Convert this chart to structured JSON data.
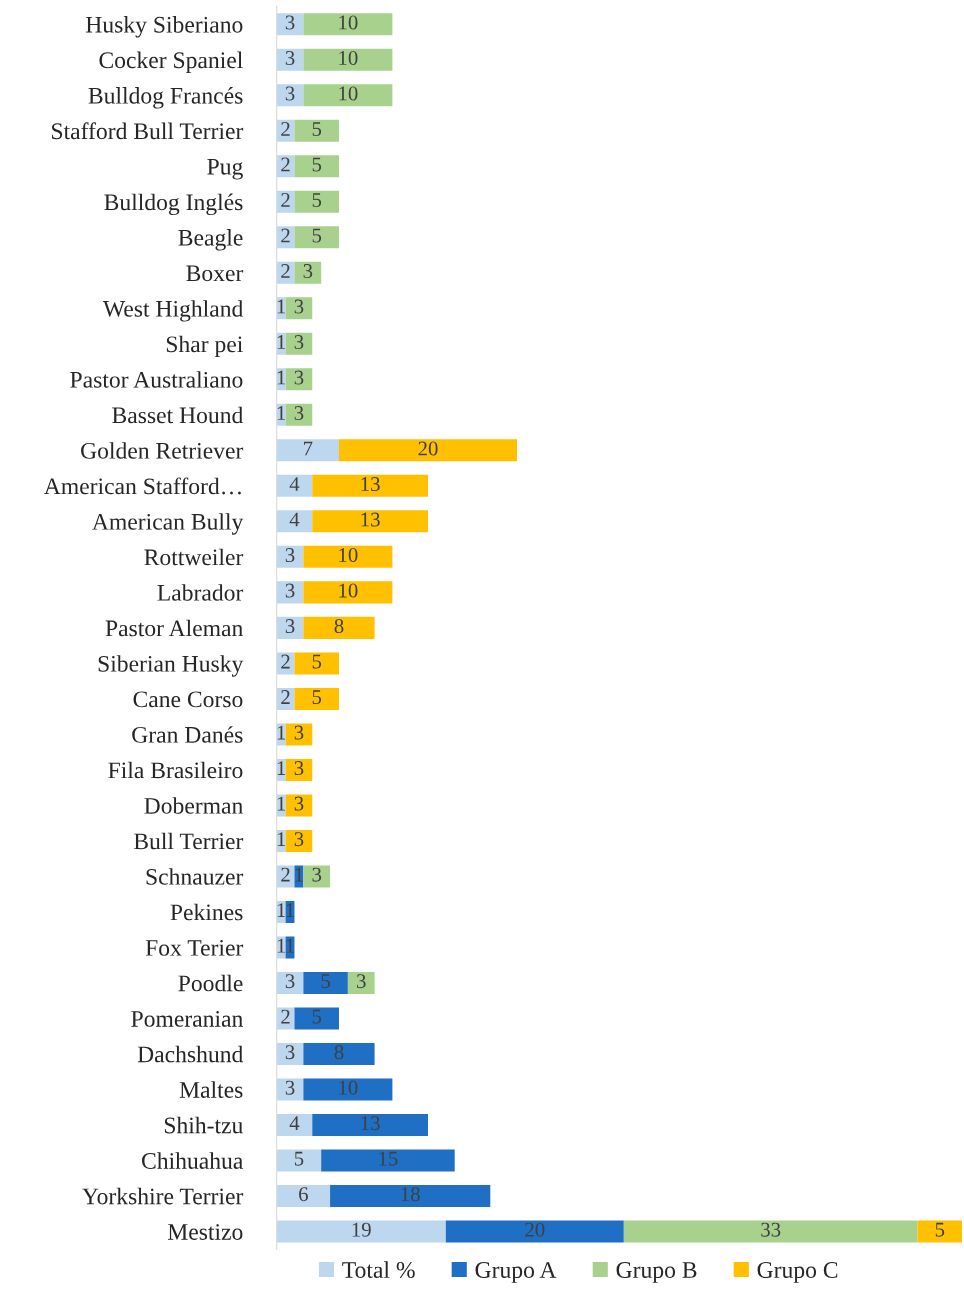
{
  "chart_data": {
    "type": "bar",
    "orientation": "horizontal",
    "stacked": true,
    "data_labels": true,
    "legend": "bottom",
    "grid": false,
    "categories": [
      "Husky Siberiano",
      "Cocker Spaniel",
      "Bulldog Francés",
      "Stafford Bull Terrier",
      "Pug",
      "Bulldog Inglés",
      "Beagle",
      "Boxer",
      "West Highland",
      "Shar pei",
      "Pastor Australiano",
      "Basset Hound",
      "Golden Retriever",
      "American Stafford…",
      "American Bully",
      "Rottweiler",
      "Labrador",
      "Pastor Aleman",
      "Siberian Husky",
      "Cane Corso",
      "Gran Danés",
      "Fila Brasileiro",
      "Doberman",
      "Bull Terrier",
      "Schnauzer",
      "Pekines",
      "Fox Terier",
      "Poodle",
      "Pomeranian",
      "Dachshund",
      "Maltes",
      "Shih-tzu",
      "Chihuahua",
      "Yorkshire Terrier",
      "Mestizo"
    ],
    "series": [
      {
        "name": "Total %",
        "color": "#bdd7ee",
        "values": [
          3,
          3,
          3,
          2,
          2,
          2,
          2,
          2,
          1,
          1,
          1,
          1,
          7,
          4,
          4,
          3,
          3,
          3,
          2,
          2,
          1,
          1,
          1,
          1,
          2,
          1,
          1,
          3,
          2,
          3,
          3,
          4,
          5,
          6,
          19
        ]
      },
      {
        "name": "Grupo A",
        "color": "#1f6fc5",
        "values": [
          null,
          null,
          null,
          null,
          null,
          null,
          null,
          null,
          null,
          null,
          null,
          null,
          null,
          null,
          null,
          null,
          null,
          null,
          null,
          null,
          null,
          null,
          null,
          null,
          1,
          1,
          1,
          5,
          5,
          8,
          10,
          13,
          15,
          18,
          20
        ]
      },
      {
        "name": "Grupo B",
        "color": "#a9d18e",
        "values": [
          10,
          10,
          10,
          5,
          5,
          5,
          5,
          3,
          3,
          3,
          3,
          3,
          null,
          null,
          null,
          null,
          null,
          null,
          null,
          null,
          null,
          null,
          null,
          null,
          3,
          null,
          null,
          3,
          null,
          null,
          null,
          null,
          null,
          null,
          33
        ]
      },
      {
        "name": "Grupo C",
        "color": "#ffc000",
        "values": [
          null,
          null,
          null,
          null,
          null,
          null,
          null,
          null,
          null,
          null,
          null,
          null,
          20,
          13,
          13,
          10,
          10,
          8,
          5,
          5,
          3,
          3,
          3,
          3,
          null,
          null,
          null,
          null,
          null,
          null,
          null,
          null,
          null,
          null,
          5
        ]
      }
    ]
  }
}
